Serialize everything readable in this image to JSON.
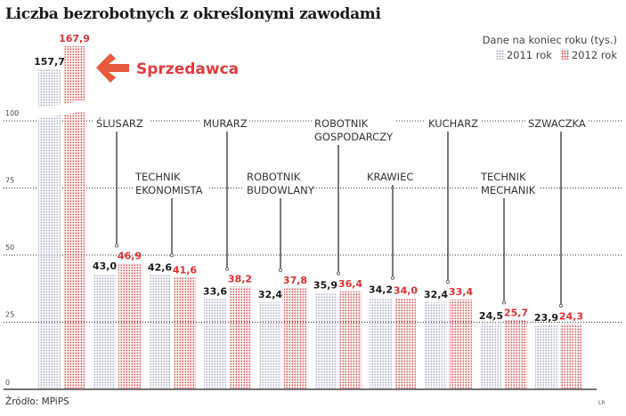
{
  "title": "Liczba bezrobotnych z określonymi zawodami",
  "source": "Źródło: MPiPS",
  "credit": "LR",
  "colors": {
    "s2011": "#aeb0cc",
    "s2012": "#e04a4a",
    "highlight": "#e85a3c"
  },
  "chart_data": {
    "type": "bar",
    "title": "Liczba bezrobotnych z określonymi zawodami",
    "units_note": "Dane na koniec roku (tys.)",
    "legend_position": "top-right",
    "grid": true,
    "axis_break": "between 100 and top of first category",
    "ylim": [
      0,
      100
    ],
    "yticks": [
      "0",
      "25",
      "50",
      "75",
      "100"
    ],
    "highlight_label": "Sprzedawca",
    "categories": [
      "Sprzedawca",
      "ŚLUSARZ",
      "TECHNIK EKONOMISTA",
      "MURARZ",
      "ROBOTNIK BUDOWLANY",
      "ROBOTNIK GOSPODARCZY",
      "KRAWIEC",
      "KUCHARZ",
      "TECHNIK MECHANIK",
      "SZWACZKA"
    ],
    "series": [
      {
        "name": "2011 rok",
        "values": [
          157.7,
          43.0,
          42.6,
          33.6,
          32.4,
          35.9,
          34.2,
          32.4,
          24.5,
          23.9
        ],
        "labels": [
          "157,7",
          "43,0",
          "42,6",
          "33,6",
          "32,4",
          "35,9",
          "34,2",
          "32,4",
          "24,5",
          "23,9"
        ]
      },
      {
        "name": "2012 rok",
        "values": [
          167.9,
          46.9,
          41.6,
          38.2,
          37.8,
          36.4,
          34.0,
          33.4,
          25.7,
          24.3
        ],
        "labels": [
          "167,9",
          "46,9",
          "41,6",
          "38,2",
          "37,8",
          "36,4",
          "34,0",
          "33,4",
          "25,7",
          "24,3"
        ]
      }
    ]
  }
}
